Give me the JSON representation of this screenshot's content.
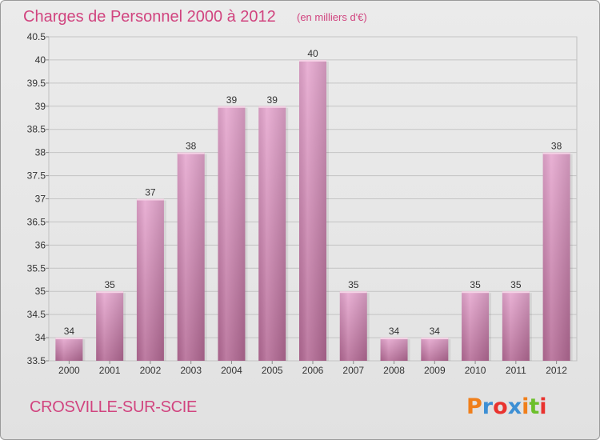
{
  "chart_data": {
    "type": "bar",
    "title": "Charges de Personnel 2000 à 2012",
    "subtitle": "(en milliers d'€)",
    "categories": [
      "2000",
      "2001",
      "2002",
      "2003",
      "2004",
      "2005",
      "2006",
      "2007",
      "2008",
      "2009",
      "2010",
      "2011",
      "2012"
    ],
    "values": [
      34,
      35,
      37,
      38,
      39,
      39,
      40,
      35,
      34,
      34,
      35,
      35,
      38
    ],
    "value_labels": [
      "34",
      "35",
      "37",
      "38",
      "39",
      "39",
      "40",
      "35",
      "34",
      "34",
      "35",
      "35",
      "38"
    ],
    "ylim": [
      33.5,
      40.5
    ],
    "yticks": [
      "33.5",
      "34",
      "34.5",
      "35",
      "35.5",
      "36",
      "36.5",
      "37",
      "37.5",
      "38",
      "38.5",
      "39",
      "39.5",
      "40",
      "40.5"
    ],
    "grid": true,
    "bar_color": "#d48bb4"
  },
  "footer": {
    "place": "CROSVILLE-SUR-SCIE",
    "logo": "Proxiti",
    "logo_colors": [
      "#f07f1b",
      "#3d8fd4",
      "#e9332f",
      "#3d8fd4",
      "#f07f1b",
      "#6cbf2b",
      "#e9332f"
    ]
  }
}
